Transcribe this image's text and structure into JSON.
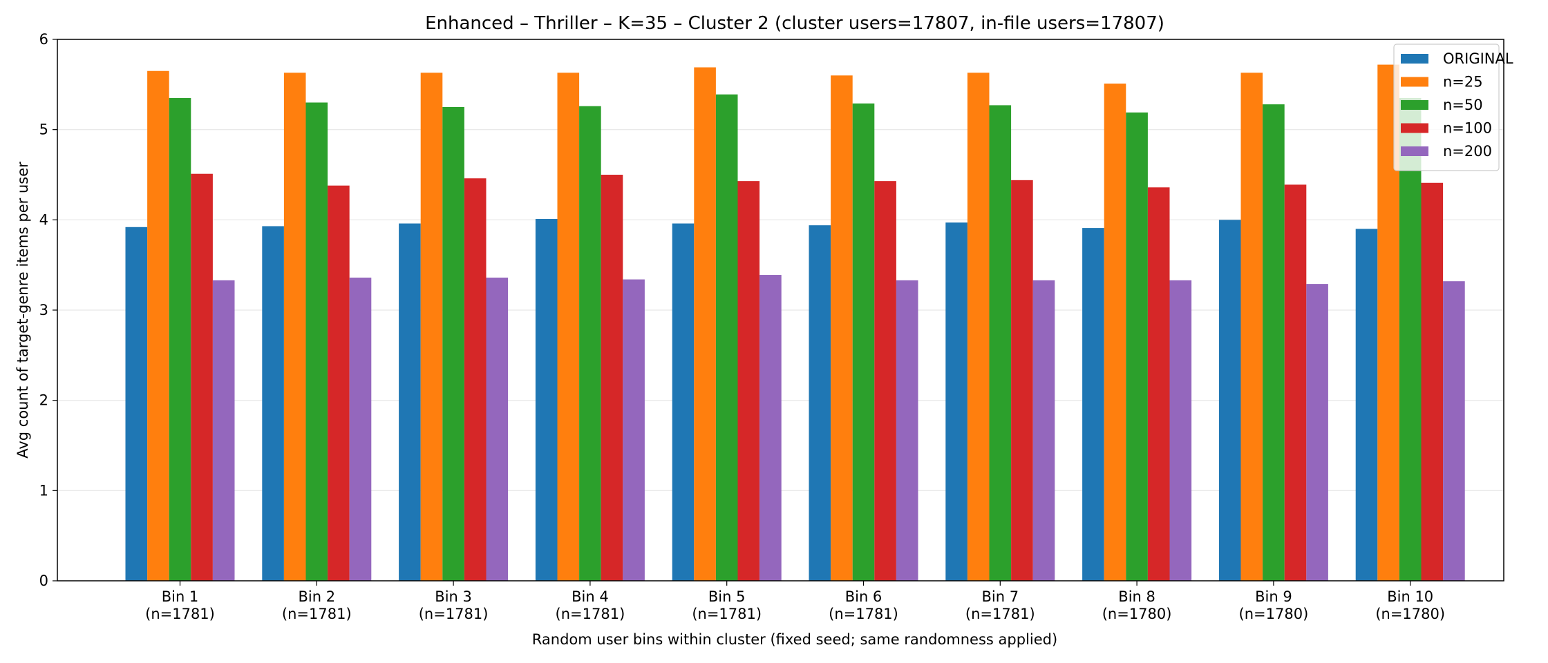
{
  "chart_data": {
    "type": "bar",
    "title": "Enhanced – Thriller – K=35 – Cluster 2 (cluster users=17807, in-file users=17807)",
    "xlabel": "Random user bins within cluster (fixed seed; same randomness applied)",
    "ylabel": "Avg count of target-genre items per user",
    "ylim": [
      0,
      6
    ],
    "yticks": [
      "0",
      "1",
      "2",
      "3",
      "4",
      "5",
      "6"
    ],
    "grid": "y",
    "legend_position": "top-right",
    "categories": [
      [
        "Bin 1",
        "(n=1781)"
      ],
      [
        "Bin 2",
        "(n=1781)"
      ],
      [
        "Bin 3",
        "(n=1781)"
      ],
      [
        "Bin 4",
        "(n=1781)"
      ],
      [
        "Bin 5",
        "(n=1781)"
      ],
      [
        "Bin 6",
        "(n=1781)"
      ],
      [
        "Bin 7",
        "(n=1781)"
      ],
      [
        "Bin 8",
        "(n=1780)"
      ],
      [
        "Bin 9",
        "(n=1780)"
      ],
      [
        "Bin 10",
        "(n=1780)"
      ]
    ],
    "series": [
      {
        "name": "ORIGINAL",
        "color": "#1f77b4",
        "values": [
          3.92,
          3.93,
          3.96,
          4.01,
          3.96,
          3.94,
          3.97,
          3.91,
          4.0,
          3.9
        ]
      },
      {
        "name": "n=25",
        "color": "#ff7f0e",
        "values": [
          5.65,
          5.63,
          5.63,
          5.63,
          5.69,
          5.6,
          5.63,
          5.51,
          5.63,
          5.72
        ]
      },
      {
        "name": "n=50",
        "color": "#2ca02c",
        "values": [
          5.35,
          5.3,
          5.25,
          5.26,
          5.39,
          5.29,
          5.27,
          5.19,
          5.28,
          5.35
        ]
      },
      {
        "name": "n=100",
        "color": "#d62728",
        "values": [
          4.51,
          4.38,
          4.46,
          4.5,
          4.43,
          4.43,
          4.44,
          4.36,
          4.39,
          4.41
        ]
      },
      {
        "name": "n=200",
        "color": "#9467bd",
        "values": [
          3.33,
          3.36,
          3.36,
          3.34,
          3.39,
          3.33,
          3.33,
          3.33,
          3.29,
          3.32
        ]
      }
    ]
  }
}
